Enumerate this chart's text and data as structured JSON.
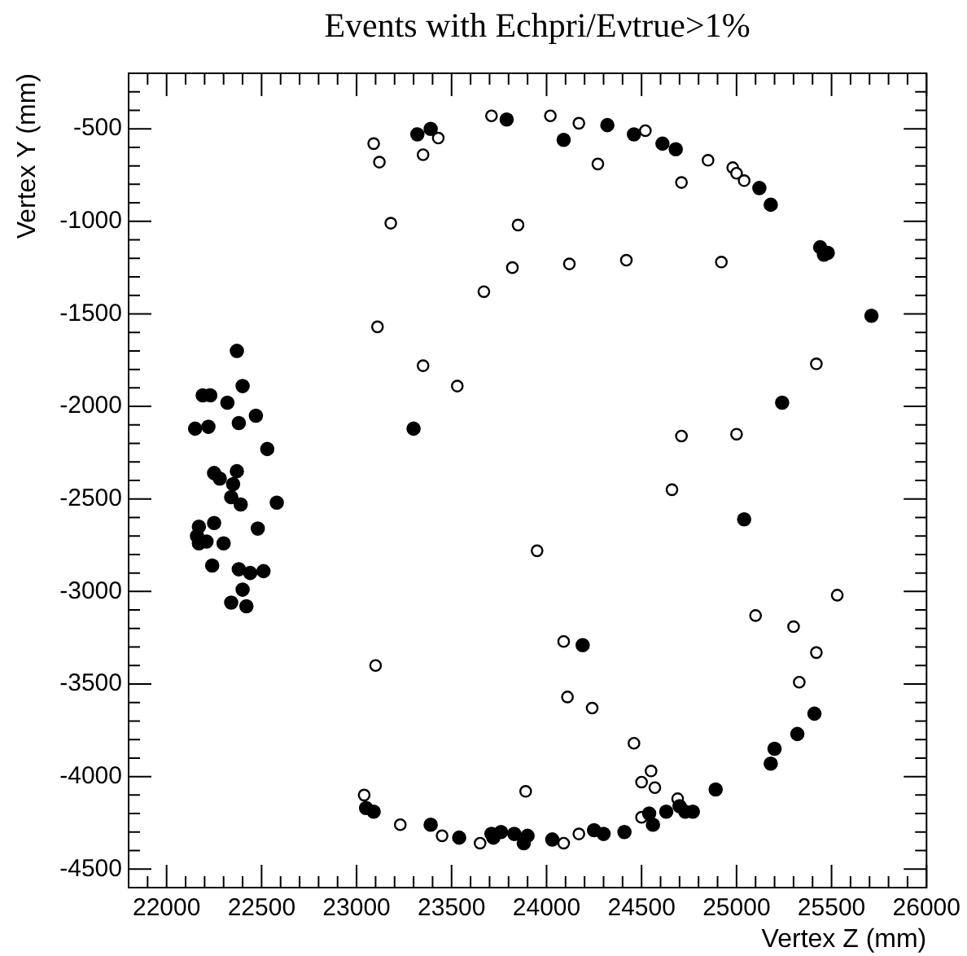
{
  "chart_data": {
    "type": "scatter",
    "title": "Events with Echpri/Eνtrue>1%",
    "xlabel": "Vertex Z (mm)",
    "ylabel": "Vertex Y (mm)",
    "xlim": [
      21800,
      26000
    ],
    "ylim": [
      -4600,
      -200
    ],
    "xticks": [
      22000,
      22500,
      23000,
      23500,
      24000,
      24500,
      25000,
      25500,
      26000
    ],
    "yticks": [
      -4500,
      -4000,
      -3500,
      -3000,
      -2500,
      -2000,
      -1500,
      -1000,
      -500
    ],
    "grid": false,
    "legend": false,
    "marker": "circle",
    "series": [
      {
        "color": "#000000",
        "x": [
          23320,
          23390,
          23790,
          24090,
          24320,
          24460,
          24610,
          24680,
          25120,
          25180,
          25440,
          25460,
          25480,
          25710,
          22370,
          25240,
          22400,
          22190,
          22230,
          22320,
          22470,
          22150,
          22220,
          22380,
          22530,
          22250,
          22280,
          22370,
          22350,
          22340,
          22390,
          22580,
          22170,
          22250,
          22160,
          22170,
          22210,
          22300,
          22480,
          22240,
          22380,
          22440,
          22510,
          22400,
          22340,
          22420,
          23300,
          25040,
          25410,
          25320,
          25200,
          25180,
          24190,
          24890,
          23050,
          23090,
          23390,
          23540,
          23710,
          23720,
          23760,
          23830,
          23880,
          23900,
          24030,
          24250,
          24300,
          24410,
          24540,
          24560,
          24630,
          24700,
          24730,
          24770
        ],
        "values": [
          -530,
          -500,
          -450,
          -560,
          -480,
          -530,
          -580,
          -610,
          -820,
          -910,
          -1140,
          -1180,
          -1170,
          -1510,
          -1700,
          -1980,
          -1890,
          -1940,
          -1940,
          -1980,
          -2050,
          -2120,
          -2110,
          -2090,
          -2230,
          -2360,
          -2390,
          -2350,
          -2420,
          -2490,
          -2530,
          -2520,
          -2650,
          -2630,
          -2700,
          -2740,
          -2730,
          -2740,
          -2660,
          -2860,
          -2880,
          -2900,
          -2890,
          -2990,
          -3060,
          -3080,
          -2120,
          -2610,
          -3660,
          -3770,
          -3850,
          -3930,
          -3290,
          -4070,
          -4170,
          -4190,
          -4260,
          -4330,
          -4310,
          -4330,
          -4300,
          -4310,
          -4360,
          -4320,
          -4340,
          -4290,
          -4310,
          -4300,
          -4200,
          -4260,
          -4190,
          -4160,
          -4190,
          -4190
        ]
      },
      {
        "color": "#000000",
        "marker": "circle-open",
        "x": [
          23090,
          23120,
          23350,
          23430,
          23710,
          24020,
          24170,
          24270,
          24520,
          24710,
          24850,
          24980,
          25000,
          25040,
          23180,
          23850,
          23820,
          24120,
          24420,
          24920,
          23670,
          23110,
          23350,
          23530,
          25420,
          24710,
          25000,
          24660,
          23950,
          25530,
          25100,
          25300,
          25420,
          25330,
          23100,
          24090,
          24110,
          24240,
          24460,
          24550,
          24500,
          24570,
          23890,
          23040,
          23230,
          23450,
          23650,
          24090,
          24170,
          24500,
          24690
        ],
        "values": [
          -580,
          -680,
          -640,
          -550,
          -430,
          -430,
          -470,
          -690,
          -510,
          -790,
          -670,
          -710,
          -740,
          -780,
          -1010,
          -1020,
          -1250,
          -1230,
          -1210,
          -1220,
          -1380,
          -1570,
          -1780,
          -1890,
          -1770,
          -2160,
          -2150,
          -2450,
          -2780,
          -3020,
          -3130,
          -3190,
          -3330,
          -3490,
          -3400,
          -3270,
          -3570,
          -3630,
          -3820,
          -3970,
          -4030,
          -4060,
          -4080,
          -4100,
          -4260,
          -4320,
          -4360,
          -4360,
          -4310,
          -4220,
          -4120
        ]
      }
    ]
  }
}
